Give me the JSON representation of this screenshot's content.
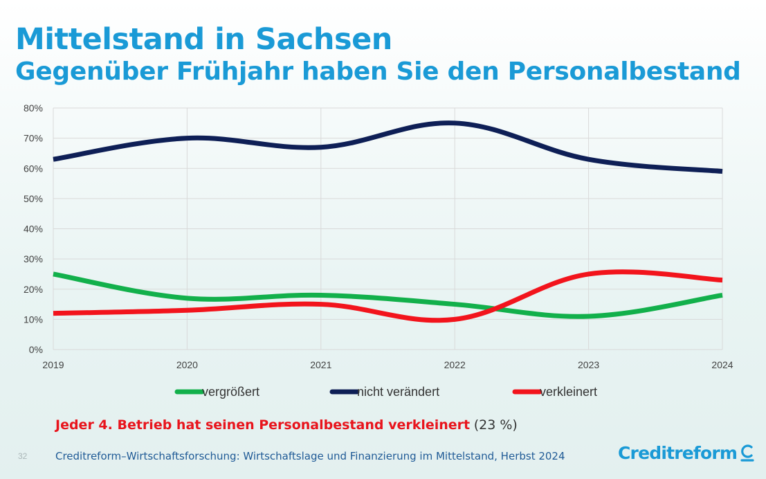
{
  "title": "Mittelstand in Sachsen",
  "subtitle": "Gegenüber Frühjahr haben Sie den Personalbestand",
  "note": {
    "highlight": "Jeder 4. Betrieb hat seinen Personalbestand verkleinert",
    "value": "(23 %)"
  },
  "footer": {
    "page_number": "32",
    "source": "Creditreform–Wirtschaftsforschung: Wirtschaftslage und Finanzierung im Mittelstand, Herbst 2024",
    "logo_text": "Creditreform"
  },
  "colors": {
    "title": "#1a9ad6",
    "vergroessert": "#12b04b",
    "nicht_veraendert": "#0e1f56",
    "verkleinert": "#f2141c",
    "note_red": "#e8141c",
    "footer": "#1f5a96"
  },
  "chart_data": {
    "type": "line",
    "smooth": true,
    "x": [
      "2019",
      "2020",
      "2021",
      "2022",
      "2023",
      "2024"
    ],
    "series": [
      {
        "name": "vergrößert",
        "color": "#12b04b",
        "values": [
          25,
          17,
          18,
          15,
          11,
          18
        ]
      },
      {
        "name": "nicht verändert",
        "color": "#0e1f56",
        "values": [
          63,
          70,
          67,
          75,
          63,
          59
        ]
      },
      {
        "name": "verkleinert",
        "color": "#f2141c",
        "values": [
          12,
          13,
          15,
          10,
          25,
          23
        ]
      }
    ],
    "ylim": [
      0,
      80
    ],
    "yticks": [
      0,
      10,
      20,
      30,
      40,
      50,
      60,
      70,
      80
    ],
    "ytick_labels": [
      "0%",
      "10%",
      "20%",
      "30%",
      "40%",
      "50%",
      "60%",
      "70%",
      "80%"
    ],
    "grid": true,
    "legend_position": "bottom"
  }
}
